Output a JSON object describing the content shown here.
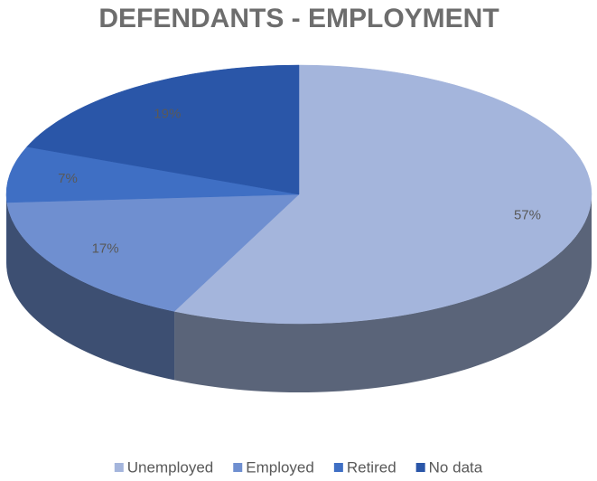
{
  "chart_data": {
    "type": "pie",
    "title": "DEFENDANTS - EMPLOYMENT",
    "categories": [
      "Unemployed",
      "Employed",
      "Retired",
      "No data"
    ],
    "values": [
      57,
      17,
      7,
      19
    ],
    "value_labels": [
      "57%",
      "17%",
      "7%",
      "19%"
    ],
    "colors": [
      "#a4b5dc",
      "#6f8fd0",
      "#3f6fc4",
      "#2a56a8"
    ],
    "legend": "bottom"
  }
}
